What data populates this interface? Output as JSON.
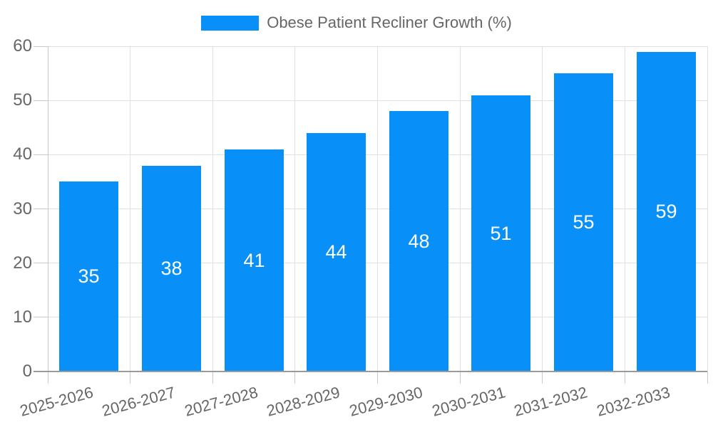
{
  "chart_data": {
    "type": "bar",
    "title": "Obese Patient Recliner Growth (%)",
    "categories": [
      "2025-2026",
      "2026-2027",
      "2027-2028",
      "2028-2029",
      "2029-2030",
      "2030-2031",
      "2031-2032",
      "2032-2033"
    ],
    "values": [
      35,
      38,
      41,
      44,
      48,
      51,
      55,
      59
    ],
    "xlabel": "",
    "ylabel": "",
    "ylim": [
      0,
      60
    ],
    "ytick_step": 10,
    "yticks": [
      "0",
      "10",
      "20",
      "30",
      "40",
      "50",
      "60"
    ],
    "grid": true,
    "legend_position": "top",
    "bar_color": "#0990f8",
    "value_label_color": "#ffffff",
    "tick_label_color": "#666666",
    "grid_color": "#e0e0e0",
    "axis_tick_color": "#c9c9c9",
    "zero_line_color": "#9a9a9a"
  }
}
